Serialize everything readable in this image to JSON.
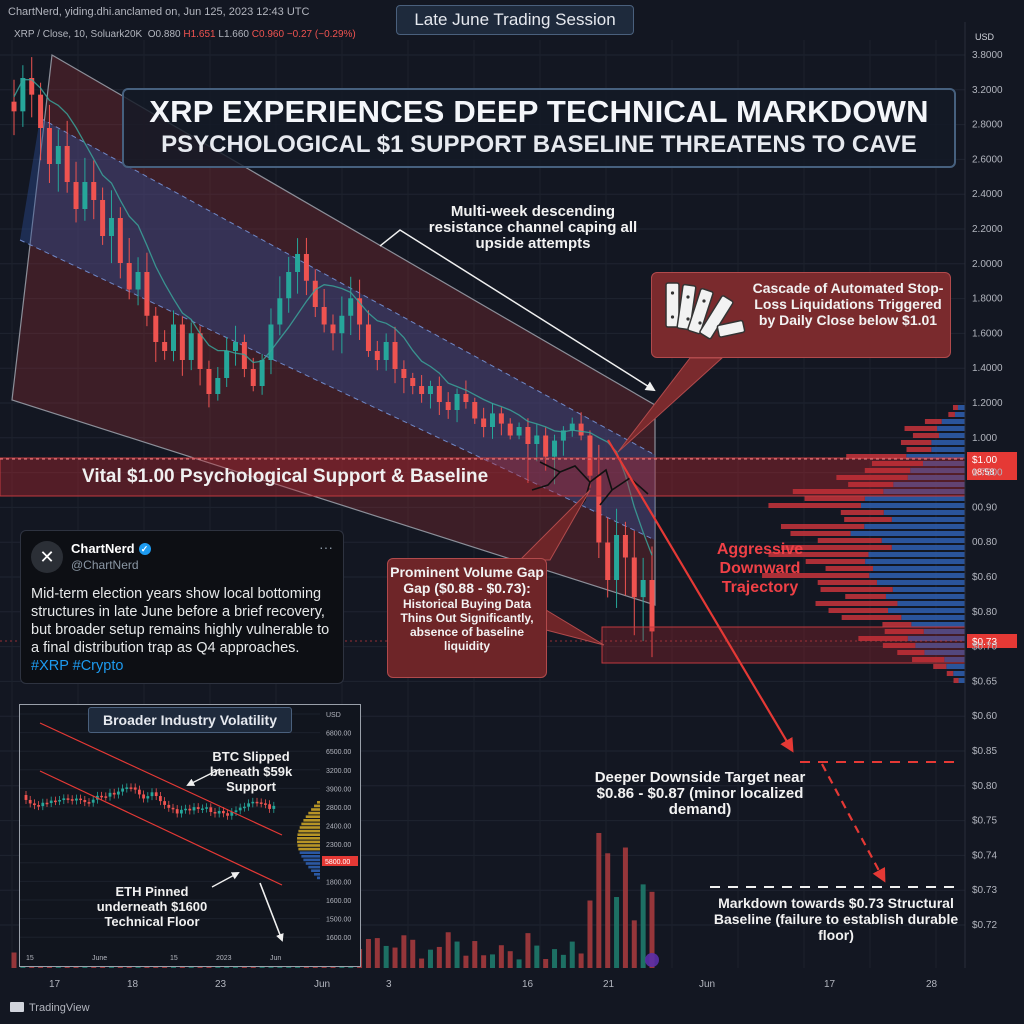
{
  "header": {
    "meta": "ChartNerd, yiding.dhi.anclamed on, Jun 125, 2023 12:43 UTC",
    "session_title": "Late June Trading Session",
    "symbol": "XRP / Close, 10, Soluark20K",
    "ohlc": {
      "o": "O0.880",
      "h": "H1.651",
      "l": "L1.660",
      "c": "C0.960",
      "change": "−0.27 (−0.29%)"
    },
    "currency": "USD"
  },
  "headline": {
    "line1": "XRP EXPERIENCES DEEP TECHNICAL MARKDOWN",
    "line2": "PSYCHOLOGICAL $1 SUPPORT BASELINE THREATENS TO CAVE"
  },
  "annotations": {
    "channel": "Multi-week descending resistance channel caping all upside attempts",
    "cascade": "Cascade of Automated Stop-Loss Liquidations Triggered by Daily Close below $1.01",
    "support": "Vital $1.00 Psychological Support & Baseline",
    "volume_gap_title": "Prominent Volume Gap Gap ($0.88 - $0.73):",
    "volume_gap_body": "Historical Buying Data Thins Out Significantly, absence of baseline liquidity",
    "aggressive": "Aggressive Downward Trajectory",
    "deeper": "Deeper Downside Target near $0.86 - $0.87 (minor localized demand)",
    "markdown": "Markdown towards $0.73 Structural Baseline (failure to establish durable floor)"
  },
  "tweet": {
    "avatar": "✕",
    "name": "ChartNerd",
    "verified": "✓",
    "handle": "@ChartNerd",
    "menu": "···",
    "text": "Mid-term election years show local bottoming structures in late June before a brief recovery, but broader setup remains highly vulnerable to a final distribution trap as Q4 approaches.",
    "tags": "#XRP #Crypto"
  },
  "inset": {
    "title": "Broader Industry Volatility",
    "btc_note": "BTC Slipped beneath $59k Support",
    "eth_note": "ETH Pinned underneath $1600 Technical Floor"
  },
  "footer": {
    "brand": "TradingView"
  },
  "chart_data": [
    {
      "type": "candlestick",
      "title": "XRP / Close, 10, Soluark20K",
      "y_axis_labels": [
        "3.8000",
        "3.2000",
        "2.8000",
        "2.6000",
        "2.4000",
        "2.2000",
        "2.0000",
        "1.8000",
        "1.6000",
        "1.4000",
        "1.2000",
        "1.000",
        "1.7600",
        "00.90",
        "00.80",
        "$0.60",
        "$0.80",
        "$0.70",
        "$0.65",
        "$0.60",
        "$0.85",
        "$0.80",
        "$0.75",
        "$0.74",
        "$0.73",
        "$0.72"
      ],
      "x_axis_labels": [
        "17",
        "18",
        "23",
        "Jun",
        "3",
        "16",
        "21",
        "Jun",
        "17",
        "28"
      ],
      "price_tags": [
        {
          "label": "$1.00",
          "sub": "08:58",
          "color": "#e53935"
        },
        {
          "label": "$0.73",
          "color": "#e53935"
        }
      ],
      "close_path": [
        2.9,
        3.1,
        3.0,
        2.8,
        2.6,
        2.7,
        2.5,
        2.35,
        2.5,
        2.4,
        2.2,
        2.3,
        2.05,
        1.9,
        2.0,
        1.75,
        1.6,
        1.55,
        1.7,
        1.5,
        1.65,
        1.45,
        1.3,
        1.4,
        1.55,
        1.6,
        1.45,
        1.35,
        1.5,
        1.7,
        1.85,
        2.0,
        2.1,
        1.95,
        1.8,
        1.7,
        1.65,
        1.75,
        1.85,
        1.7,
        1.55,
        1.5,
        1.6,
        1.45,
        1.4,
        1.35,
        1.3,
        1.35,
        1.25,
        1.2,
        1.3,
        1.25,
        1.15,
        1.1,
        1.18,
        1.12,
        1.05,
        1.1,
        1.0,
        1.05,
        0.98,
        1.02,
        1.08,
        1.12,
        1.05,
        0.95,
        0.85,
        0.8,
        0.86,
        0.83,
        0.78,
        0.8,
        0.74
      ],
      "levels": {
        "support": 1.0,
        "target_upper": 0.87,
        "target_lower": 0.73,
        "gap_high": 0.88,
        "gap_low": 0.73
      },
      "volume_profile_right": "horizontal histogram, red upper / blue lower",
      "colors": {
        "up": "#26a69a",
        "down": "#ef5350",
        "channel": "#b0353c",
        "band": "#2e4f9b",
        "ma": "#3aa39a"
      }
    },
    {
      "type": "line",
      "title": "Broader Industry Volatility",
      "y_axis_labels": [
        "USD",
        "6800.00",
        "6500.00",
        "3200.00",
        "3900.00",
        "2800.00",
        "2400.00",
        "2300.00",
        "2000.00",
        "1800.00",
        "1600.00",
        "1500.00",
        "1600.00"
      ],
      "x_axis_labels": [
        "15",
        "June",
        "15",
        "2023",
        "Jun"
      ],
      "price_tag": "5800.00"
    }
  ]
}
